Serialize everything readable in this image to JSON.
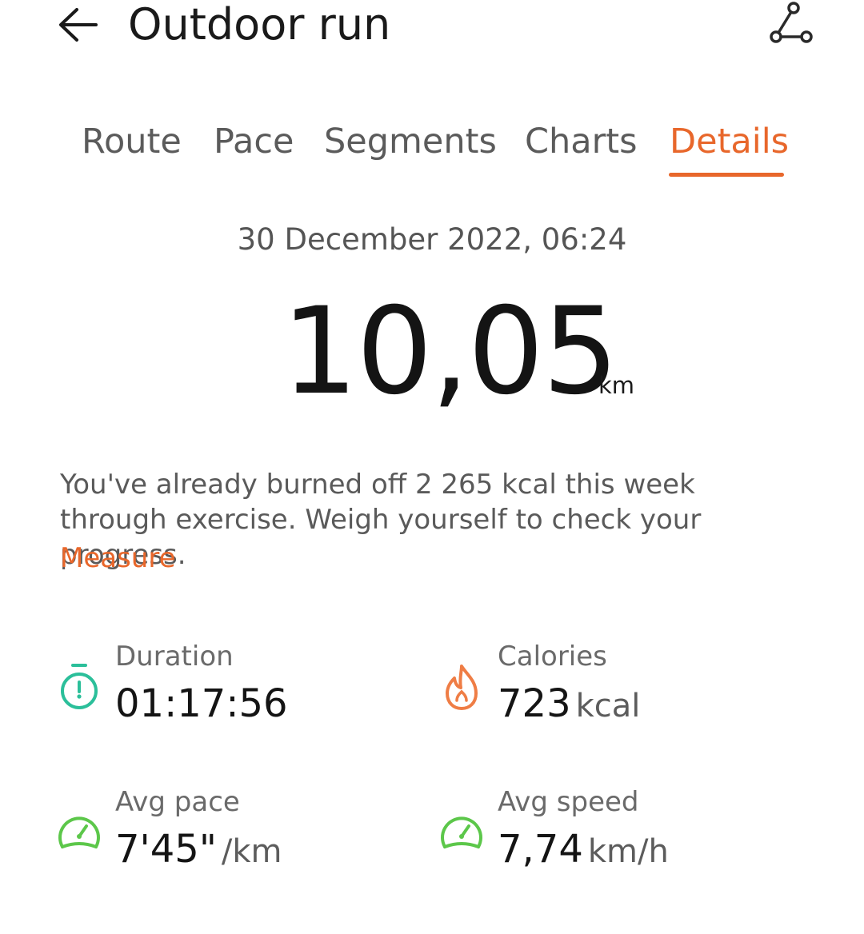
{
  "header": {
    "title": "Outdoor run",
    "back_icon": "back-arrow-icon",
    "route_icon": "route-icon"
  },
  "tabs": [
    {
      "label": "Route",
      "active": false
    },
    {
      "label": "Pace",
      "active": false
    },
    {
      "label": "Segments",
      "active": false
    },
    {
      "label": "Charts",
      "active": false
    },
    {
      "label": "Details",
      "active": true
    }
  ],
  "summary": {
    "date": "30 December 2022, 06:24",
    "distance": "10,05",
    "distance_unit": "km"
  },
  "notice": {
    "text": "You've already burned off 2 265 kcal this week through exercise. Weigh yourself to check your progress.",
    "link_label": "Measure"
  },
  "stats": {
    "duration": {
      "label": "Duration",
      "value": "01:17:56",
      "unit": "",
      "icon": "stopwatch-icon"
    },
    "calories": {
      "label": "Calories",
      "value": "723",
      "unit": "kcal",
      "icon": "flame-icon"
    },
    "avg_pace": {
      "label": "Avg pace",
      "value": "7'45\"",
      "unit": "/km",
      "icon": "speedometer-icon"
    },
    "avg_speed": {
      "label": "Avg speed",
      "value": "7,74",
      "unit": "km/h",
      "icon": "speedometer-icon"
    }
  },
  "colors": {
    "accent": "#e8672b",
    "duration_icon": "#2bbf9a",
    "calories_icon": "#ef7d45",
    "speed_icon": "#5cc74a"
  }
}
